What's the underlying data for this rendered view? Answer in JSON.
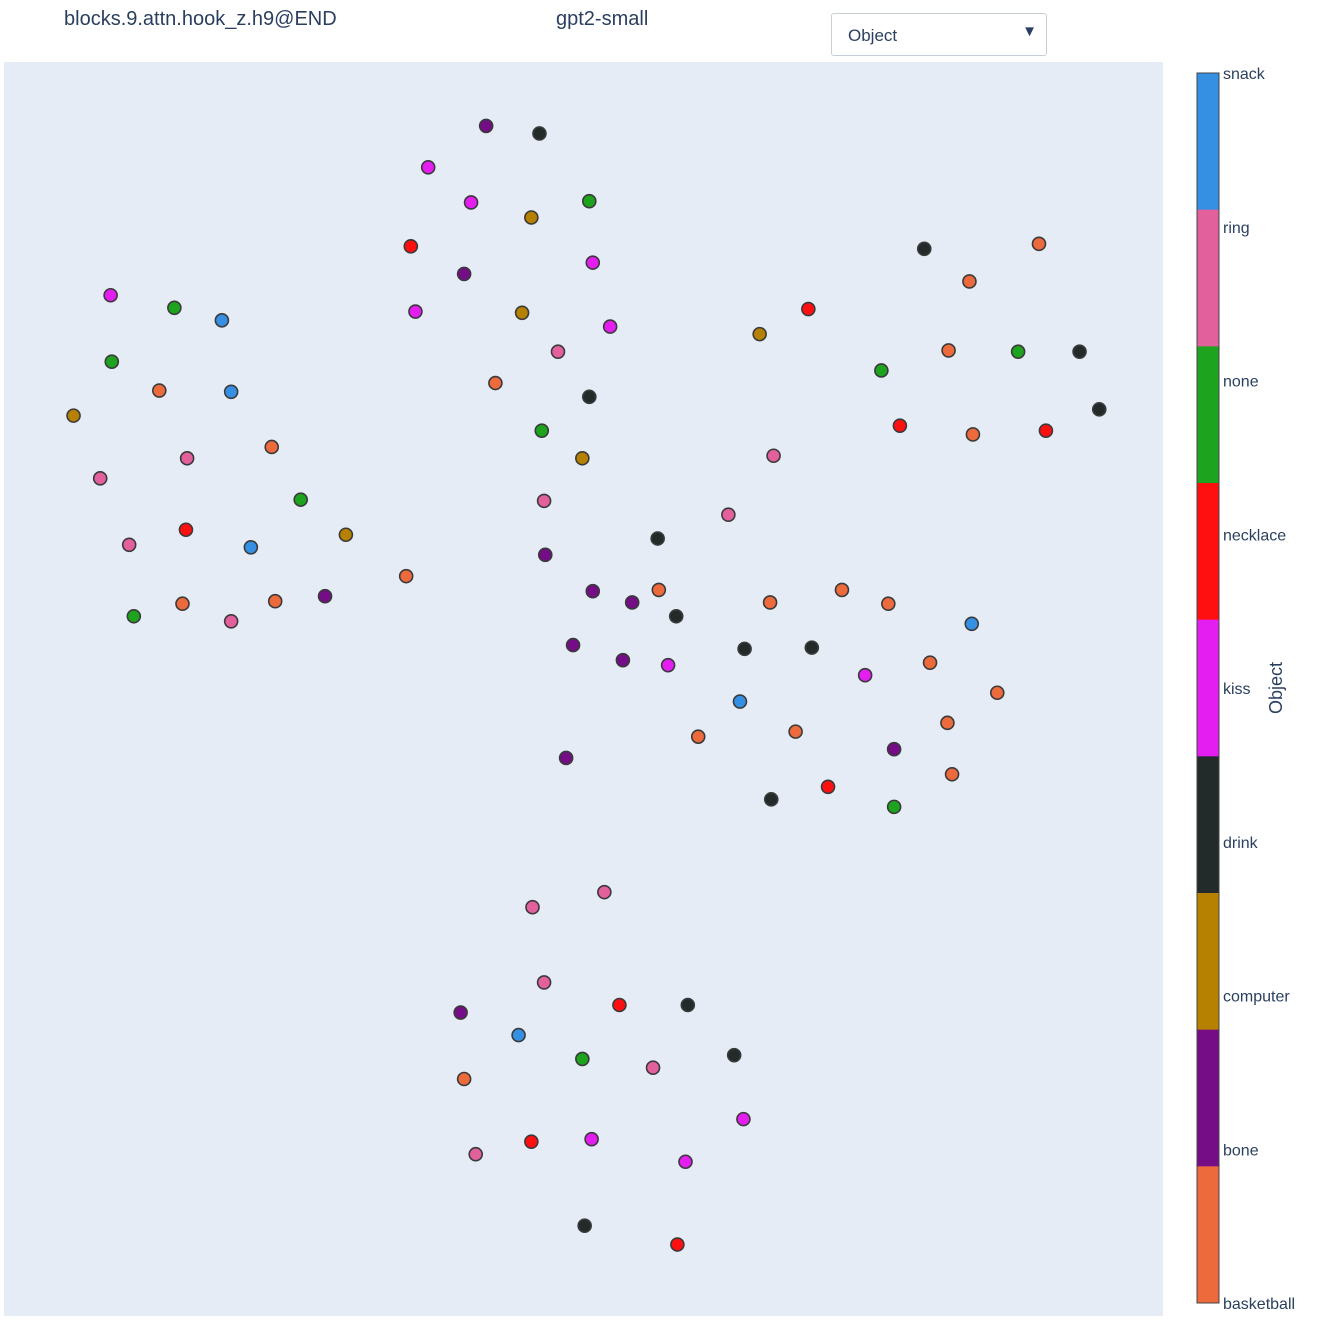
{
  "header": {
    "layer": "blocks.9.attn.hook_z.h9@END",
    "model": "gpt2-small"
  },
  "dropdown": {
    "selected": "Object",
    "arrow_icon": "triangle-down-icon"
  },
  "colorbar": {
    "title": "Object",
    "categories": [
      {
        "label": "snack",
        "color": "#3590e3"
      },
      {
        "label": "ring",
        "color": "#e2609c"
      },
      {
        "label": "none",
        "color": "#1ea31e"
      },
      {
        "label": "necklace",
        "color": "#fe1010"
      },
      {
        "label": "kiss",
        "color": "#e41ef0"
      },
      {
        "label": "drink",
        "color": "#222a2a"
      },
      {
        "label": "computer",
        "color": "#b68100"
      },
      {
        "label": "bone",
        "color": "#750d86"
      },
      {
        "label": "basketball",
        "color": "#ec6a3c"
      }
    ]
  },
  "chart_data": {
    "type": "scatter",
    "xlim": [
      0,
      100
    ],
    "ylim": [
      0,
      100
    ],
    "grid": false,
    "background": "#e5ecf6",
    "color_by": "Object",
    "points": [
      {
        "x": 41.6,
        "y": 94.9,
        "c": "bone"
      },
      {
        "x": 46.2,
        "y": 94.3,
        "c": "drink"
      },
      {
        "x": 36.6,
        "y": 91.6,
        "c": "kiss"
      },
      {
        "x": 40.3,
        "y": 88.8,
        "c": "kiss"
      },
      {
        "x": 45.5,
        "y": 87.6,
        "c": "computer"
      },
      {
        "x": 50.5,
        "y": 88.9,
        "c": "none"
      },
      {
        "x": 35.1,
        "y": 85.3,
        "c": "necklace"
      },
      {
        "x": 39.7,
        "y": 83.1,
        "c": "bone"
      },
      {
        "x": 50.8,
        "y": 84.0,
        "c": "kiss"
      },
      {
        "x": 35.5,
        "y": 80.1,
        "c": "kiss"
      },
      {
        "x": 44.7,
        "y": 80.0,
        "c": "computer"
      },
      {
        "x": 52.3,
        "y": 78.9,
        "c": "kiss"
      },
      {
        "x": 47.8,
        "y": 76.9,
        "c": "ring"
      },
      {
        "x": 42.4,
        "y": 74.4,
        "c": "basketball"
      },
      {
        "x": 50.5,
        "y": 73.3,
        "c": "drink"
      },
      {
        "x": 46.4,
        "y": 70.6,
        "c": "none"
      },
      {
        "x": 49.9,
        "y": 68.4,
        "c": "computer"
      },
      {
        "x": 46.6,
        "y": 65.0,
        "c": "ring"
      },
      {
        "x": 46.7,
        "y": 60.7,
        "c": "bone"
      },
      {
        "x": 34.7,
        "y": 59.0,
        "c": "basketball"
      },
      {
        "x": 9.2,
        "y": 81.4,
        "c": "kiss"
      },
      {
        "x": 14.7,
        "y": 80.4,
        "c": "none"
      },
      {
        "x": 18.8,
        "y": 79.4,
        "c": "snack"
      },
      {
        "x": 9.3,
        "y": 76.1,
        "c": "none"
      },
      {
        "x": 13.4,
        "y": 73.8,
        "c": "basketball"
      },
      {
        "x": 19.6,
        "y": 73.7,
        "c": "snack"
      },
      {
        "x": 6.0,
        "y": 71.8,
        "c": "computer"
      },
      {
        "x": 23.1,
        "y": 69.3,
        "c": "basketball"
      },
      {
        "x": 15.8,
        "y": 68.4,
        "c": "ring"
      },
      {
        "x": 8.3,
        "y": 66.8,
        "c": "ring"
      },
      {
        "x": 25.6,
        "y": 65.1,
        "c": "none"
      },
      {
        "x": 15.7,
        "y": 62.7,
        "c": "necklace"
      },
      {
        "x": 29.5,
        "y": 62.3,
        "c": "computer"
      },
      {
        "x": 10.8,
        "y": 61.5,
        "c": "ring"
      },
      {
        "x": 21.3,
        "y": 61.3,
        "c": "snack"
      },
      {
        "x": 27.7,
        "y": 57.4,
        "c": "bone"
      },
      {
        "x": 15.4,
        "y": 56.8,
        "c": "basketball"
      },
      {
        "x": 23.4,
        "y": 57.0,
        "c": "basketball"
      },
      {
        "x": 11.2,
        "y": 55.8,
        "c": "none"
      },
      {
        "x": 19.6,
        "y": 55.4,
        "c": "ring"
      },
      {
        "x": 79.4,
        "y": 85.1,
        "c": "drink"
      },
      {
        "x": 89.3,
        "y": 85.5,
        "c": "basketball"
      },
      {
        "x": 83.3,
        "y": 82.5,
        "c": "basketball"
      },
      {
        "x": 69.4,
        "y": 80.3,
        "c": "necklace"
      },
      {
        "x": 65.2,
        "y": 78.3,
        "c": "computer"
      },
      {
        "x": 81.5,
        "y": 77.0,
        "c": "basketball"
      },
      {
        "x": 87.5,
        "y": 76.9,
        "c": "none"
      },
      {
        "x": 92.8,
        "y": 76.9,
        "c": "drink"
      },
      {
        "x": 75.7,
        "y": 75.4,
        "c": "none"
      },
      {
        "x": 94.5,
        "y": 72.3,
        "c": "drink"
      },
      {
        "x": 77.3,
        "y": 71.0,
        "c": "necklace"
      },
      {
        "x": 83.6,
        "y": 70.3,
        "c": "basketball"
      },
      {
        "x": 89.9,
        "y": 70.6,
        "c": "necklace"
      },
      {
        "x": 66.4,
        "y": 68.6,
        "c": "ring"
      },
      {
        "x": 62.5,
        "y": 63.9,
        "c": "ring"
      },
      {
        "x": 56.4,
        "y": 62.0,
        "c": "drink"
      },
      {
        "x": 50.8,
        "y": 57.8,
        "c": "bone"
      },
      {
        "x": 54.2,
        "y": 56.9,
        "c": "bone"
      },
      {
        "x": 56.5,
        "y": 57.9,
        "c": "basketball"
      },
      {
        "x": 58.0,
        "y": 55.8,
        "c": "drink"
      },
      {
        "x": 66.1,
        "y": 56.9,
        "c": "basketball"
      },
      {
        "x": 72.3,
        "y": 57.9,
        "c": "basketball"
      },
      {
        "x": 76.3,
        "y": 56.8,
        "c": "basketball"
      },
      {
        "x": 83.5,
        "y": 55.2,
        "c": "snack"
      },
      {
        "x": 49.1,
        "y": 53.5,
        "c": "bone"
      },
      {
        "x": 53.4,
        "y": 52.3,
        "c": "bone"
      },
      {
        "x": 57.3,
        "y": 51.9,
        "c": "kiss"
      },
      {
        "x": 63.9,
        "y": 53.2,
        "c": "drink"
      },
      {
        "x": 69.7,
        "y": 53.3,
        "c": "drink"
      },
      {
        "x": 74.3,
        "y": 51.1,
        "c": "kiss"
      },
      {
        "x": 79.9,
        "y": 52.1,
        "c": "basketball"
      },
      {
        "x": 85.7,
        "y": 49.7,
        "c": "basketball"
      },
      {
        "x": 63.5,
        "y": 49.0,
        "c": "snack"
      },
      {
        "x": 81.4,
        "y": 47.3,
        "c": "basketball"
      },
      {
        "x": 68.3,
        "y": 46.6,
        "c": "basketball"
      },
      {
        "x": 59.9,
        "y": 46.2,
        "c": "basketball"
      },
      {
        "x": 76.8,
        "y": 45.2,
        "c": "bone"
      },
      {
        "x": 48.5,
        "y": 44.5,
        "c": "bone"
      },
      {
        "x": 81.8,
        "y": 43.2,
        "c": "basketball"
      },
      {
        "x": 71.1,
        "y": 42.2,
        "c": "necklace"
      },
      {
        "x": 66.2,
        "y": 41.2,
        "c": "drink"
      },
      {
        "x": 76.8,
        "y": 40.6,
        "c": "none"
      },
      {
        "x": 51.8,
        "y": 33.8,
        "c": "ring"
      },
      {
        "x": 45.6,
        "y": 32.6,
        "c": "ring"
      },
      {
        "x": 46.6,
        "y": 26.6,
        "c": "ring"
      },
      {
        "x": 53.1,
        "y": 24.8,
        "c": "necklace"
      },
      {
        "x": 59.0,
        "y": 24.8,
        "c": "drink"
      },
      {
        "x": 39.4,
        "y": 24.2,
        "c": "bone"
      },
      {
        "x": 44.4,
        "y": 22.4,
        "c": "snack"
      },
      {
        "x": 63.0,
        "y": 20.8,
        "c": "drink"
      },
      {
        "x": 49.9,
        "y": 20.5,
        "c": "none"
      },
      {
        "x": 56.0,
        "y": 19.8,
        "c": "ring"
      },
      {
        "x": 39.7,
        "y": 18.9,
        "c": "basketball"
      },
      {
        "x": 63.8,
        "y": 15.7,
        "c": "kiss"
      },
      {
        "x": 50.7,
        "y": 14.1,
        "c": "kiss"
      },
      {
        "x": 45.5,
        "y": 13.9,
        "c": "necklace"
      },
      {
        "x": 40.7,
        "y": 12.9,
        "c": "ring"
      },
      {
        "x": 58.8,
        "y": 12.3,
        "c": "kiss"
      },
      {
        "x": 50.1,
        "y": 7.2,
        "c": "drink"
      },
      {
        "x": 58.1,
        "y": 5.7,
        "c": "necklace"
      }
    ]
  }
}
